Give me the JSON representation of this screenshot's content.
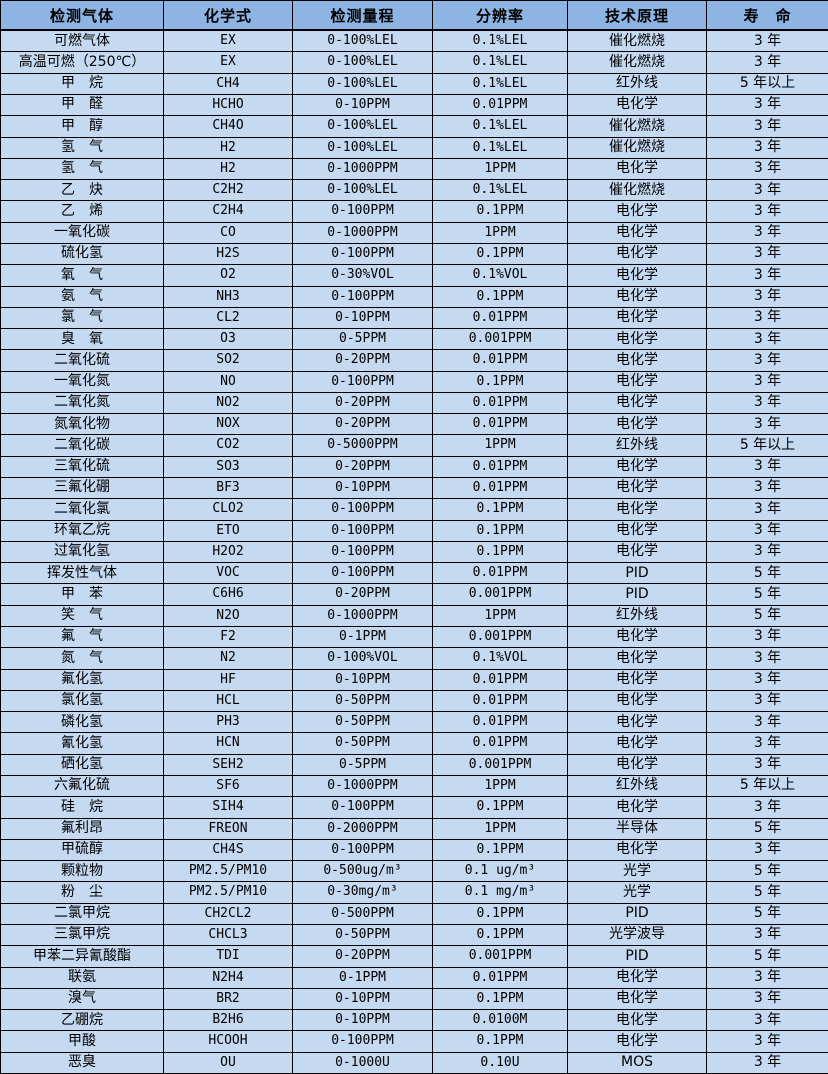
{
  "table": {
    "title": "gas-detector-specification-table",
    "colors": {
      "header_bg": "#8DB4E2",
      "row_bg": "#C5D9F1",
      "border": "#000000",
      "text": "#000000"
    },
    "headers": [
      "检测气体",
      "化学式",
      "检测量程",
      "分辨率",
      "技术原理",
      "寿　命"
    ],
    "column_keys": [
      "gas",
      "formula",
      "range",
      "resolution",
      "principle",
      "lifespan"
    ],
    "rows": [
      {
        "gas": "可燃气体",
        "formula": "EX",
        "range": "0-100%LEL",
        "resolution": "0.1%LEL",
        "principle": "催化燃烧",
        "lifespan": "3 年"
      },
      {
        "gas": "高温可燃（250℃）",
        "formula": "EX",
        "range": "0-100%LEL",
        "resolution": "0.1%LEL",
        "principle": "催化燃烧",
        "lifespan": "3 年"
      },
      {
        "gas": "甲　烷",
        "formula": "CH4",
        "range": "0-100%LEL",
        "resolution": "0.1%LEL",
        "principle": "红外线",
        "lifespan": "5 年以上"
      },
      {
        "gas": "甲　醛",
        "formula": "HCHO",
        "range": "0-10PPM",
        "resolution": "0.01PPM",
        "principle": "电化学",
        "lifespan": "3 年"
      },
      {
        "gas": "甲　醇",
        "formula": "CH4O",
        "range": "0-100%LEL",
        "resolution": "0.1%LEL",
        "principle": "催化燃烧",
        "lifespan": "3 年"
      },
      {
        "gas": "氢　气",
        "formula": "H2",
        "range": "0-100%LEL",
        "resolution": "0.1%LEL",
        "principle": "催化燃烧",
        "lifespan": "3 年"
      },
      {
        "gas": "氢　气",
        "formula": "H2",
        "range": "0-1000PPM",
        "resolution": "1PPM",
        "principle": "电化学",
        "lifespan": "3 年"
      },
      {
        "gas": "乙　炔",
        "formula": "C2H2",
        "range": "0-100%LEL",
        "resolution": "0.1%LEL",
        "principle": "催化燃烧",
        "lifespan": "3 年"
      },
      {
        "gas": "乙　烯",
        "formula": "C2H4",
        "range": "0-100PPM",
        "resolution": "0.1PPM",
        "principle": "电化学",
        "lifespan": "3 年"
      },
      {
        "gas": "一氧化碳",
        "formula": "CO",
        "range": "0-1000PPM",
        "resolution": "1PPM",
        "principle": "电化学",
        "lifespan": "3 年"
      },
      {
        "gas": "硫化氢",
        "formula": "H2S",
        "range": "0-100PPM",
        "resolution": "0.1PPM",
        "principle": "电化学",
        "lifespan": "3 年"
      },
      {
        "gas": "氧　气",
        "formula": "O2",
        "range": "0-30%VOL",
        "resolution": "0.1%VOL",
        "principle": "电化学",
        "lifespan": "3 年"
      },
      {
        "gas": "氨　气",
        "formula": "NH3",
        "range": "0-100PPM",
        "resolution": "0.1PPM",
        "principle": "电化学",
        "lifespan": "3 年"
      },
      {
        "gas": "氯　气",
        "formula": "CL2",
        "range": "0-10PPM",
        "resolution": "0.01PPM",
        "principle": "电化学",
        "lifespan": "3 年"
      },
      {
        "gas": "臭　氧",
        "formula": "O3",
        "range": "0-5PPM",
        "resolution": "0.001PPM",
        "principle": "电化学",
        "lifespan": "3 年"
      },
      {
        "gas": "二氧化硫",
        "formula": "SO2",
        "range": "0-20PPM",
        "resolution": "0.01PPM",
        "principle": "电化学",
        "lifespan": "3 年"
      },
      {
        "gas": "一氧化氮",
        "formula": "NO",
        "range": "0-100PPM",
        "resolution": "0.1PPM",
        "principle": "电化学",
        "lifespan": "3 年"
      },
      {
        "gas": "二氧化氮",
        "formula": "NO2",
        "range": "0-20PPM",
        "resolution": "0.01PPM",
        "principle": "电化学",
        "lifespan": "3 年"
      },
      {
        "gas": "氮氧化物",
        "formula": "NOX",
        "range": "0-20PPM",
        "resolution": "0.01PPM",
        "principle": "电化学",
        "lifespan": "3 年"
      },
      {
        "gas": "二氧化碳",
        "formula": "CO2",
        "range": "0-5000PPM",
        "resolution": "1PPM",
        "principle": "红外线",
        "lifespan": "5 年以上"
      },
      {
        "gas": "三氧化硫",
        "formula": "SO3",
        "range": "0-20PPM",
        "resolution": "0.01PPM",
        "principle": "电化学",
        "lifespan": "3 年"
      },
      {
        "gas": "三氟化硼",
        "formula": "BF3",
        "range": "0-10PPM",
        "resolution": "0.01PPM",
        "principle": "电化学",
        "lifespan": "3 年"
      },
      {
        "gas": "二氧化氯",
        "formula": "CLO2",
        "range": "0-100PPM",
        "resolution": "0.1PPM",
        "principle": "电化学",
        "lifespan": "3 年"
      },
      {
        "gas": "环氧乙烷",
        "formula": "ETO",
        "range": "0-100PPM",
        "resolution": "0.1PPM",
        "principle": "电化学",
        "lifespan": "3 年"
      },
      {
        "gas": "过氧化氢",
        "formula": "H2O2",
        "range": "0-100PPM",
        "resolution": "0.1PPM",
        "principle": "电化学",
        "lifespan": "3 年"
      },
      {
        "gas": "挥发性气体",
        "formula": "VOC",
        "range": "0-100PPM",
        "resolution": "0.01PPM",
        "principle": "PID",
        "lifespan": "5 年"
      },
      {
        "gas": "甲　苯",
        "formula": "C6H6",
        "range": "0-20PPM",
        "resolution": "0.001PPM",
        "principle": "PID",
        "lifespan": "5 年"
      },
      {
        "gas": "笑　气",
        "formula": "N2O",
        "range": "0-1000PPM",
        "resolution": "1PPM",
        "principle": "红外线",
        "lifespan": "5 年"
      },
      {
        "gas": "氟　气",
        "formula": "F2",
        "range": "0-1PPM",
        "resolution": "0.001PPM",
        "principle": "电化学",
        "lifespan": "3 年"
      },
      {
        "gas": "氮　气",
        "formula": "N2",
        "range": "0-100%VOL",
        "resolution": "0.1%VOL",
        "principle": "电化学",
        "lifespan": "3 年"
      },
      {
        "gas": "氟化氢",
        "formula": "HF",
        "range": "0-10PPM",
        "resolution": "0.01PPM",
        "principle": "电化学",
        "lifespan": "3 年"
      },
      {
        "gas": "氯化氢",
        "formula": "HCL",
        "range": "0-50PPM",
        "resolution": "0.01PPM",
        "principle": "电化学",
        "lifespan": "3 年"
      },
      {
        "gas": "磷化氢",
        "formula": "PH3",
        "range": "0-50PPM",
        "resolution": "0.01PPM",
        "principle": "电化学",
        "lifespan": "3 年"
      },
      {
        "gas": "氰化氢",
        "formula": "HCN",
        "range": "0-50PPM",
        "resolution": "0.01PPM",
        "principle": "电化学",
        "lifespan": "3 年"
      },
      {
        "gas": "硒化氢",
        "formula": "SEH2",
        "range": "0-5PPM",
        "resolution": "0.001PPM",
        "principle": "电化学",
        "lifespan": "3 年"
      },
      {
        "gas": "六氟化硫",
        "formula": "SF6",
        "range": "0-1000PPM",
        "resolution": "1PPM",
        "principle": "红外线",
        "lifespan": "5 年以上"
      },
      {
        "gas": "硅　烷",
        "formula": "SIH4",
        "range": "0-100PPM",
        "resolution": "0.1PPM",
        "principle": "电化学",
        "lifespan": "3 年"
      },
      {
        "gas": "氟利昂",
        "formula": "FREON",
        "range": "0-2000PPM",
        "resolution": "1PPM",
        "principle": "半导体",
        "lifespan": "5 年"
      },
      {
        "gas": "甲硫醇",
        "formula": "CH4S",
        "range": "0-100PPM",
        "resolution": "0.1PPM",
        "principle": "电化学",
        "lifespan": "3 年"
      },
      {
        "gas": "颗粒物",
        "formula": "PM2.5/PM10",
        "range": "0-500ug/m³",
        "resolution": "0.1 ug/m³",
        "principle": "光学",
        "lifespan": "5 年"
      },
      {
        "gas": "粉　尘",
        "formula": "PM2.5/PM10",
        "range": "0-30mg/m³",
        "resolution": "0.1 mg/m³",
        "principle": "光学",
        "lifespan": "5 年"
      },
      {
        "gas": "二氯甲烷",
        "formula": "CH2CL2",
        "range": "0-500PPM",
        "resolution": "0.1PPM",
        "principle": "PID",
        "lifespan": "5 年"
      },
      {
        "gas": "三氯甲烷",
        "formula": "CHCL3",
        "range": "0-50PPM",
        "resolution": "0.1PPM",
        "principle": "光学波导",
        "lifespan": "3 年"
      },
      {
        "gas": "甲苯二异氰酸酯",
        "formula": "TDI",
        "range": "0-20PPM",
        "resolution": "0.001PPM",
        "principle": "PID",
        "lifespan": "5 年"
      },
      {
        "gas": "联氨",
        "formula": "N2H4",
        "range": "0-1PPM",
        "resolution": "0.01PPM",
        "principle": "电化学",
        "lifespan": "3 年"
      },
      {
        "gas": "溴气",
        "formula": "BR2",
        "range": "0-10PPM",
        "resolution": "0.1PPM",
        "principle": "电化学",
        "lifespan": "3 年"
      },
      {
        "gas": "乙硼烷",
        "formula": "B2H6",
        "range": "0-10PPM",
        "resolution": "0.0100M",
        "principle": "电化学",
        "lifespan": "3 年"
      },
      {
        "gas": "甲酸",
        "formula": "HCOOH",
        "range": "0-100PPM",
        "resolution": "0.1PPM",
        "principle": "电化学",
        "lifespan": "3 年"
      },
      {
        "gas": "恶臭",
        "formula": "OU",
        "range": "0-1000U",
        "resolution": "0.10U",
        "principle": "MOS",
        "lifespan": "3 年"
      }
    ]
  }
}
